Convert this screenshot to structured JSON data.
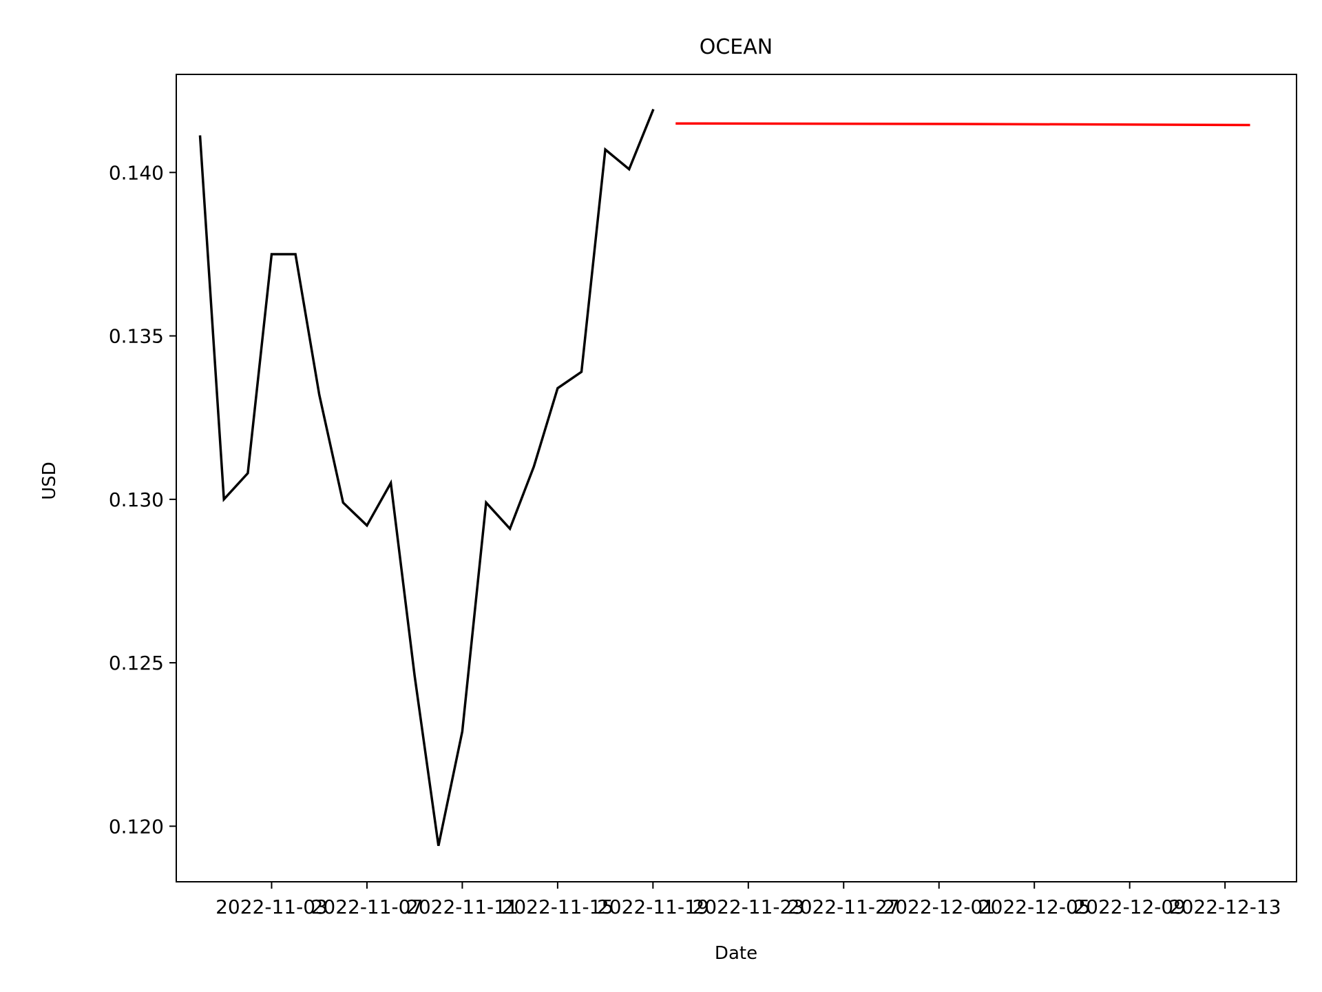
{
  "chart_data": {
    "type": "line",
    "title": "OCEAN",
    "xlabel": "Date",
    "ylabel": "USD",
    "x_ticks": [
      "2022-11-03",
      "2022-11-07",
      "2022-11-11",
      "2022-11-15",
      "2022-11-19",
      "2022-11-23",
      "2022-11-27",
      "2022-12-01",
      "2022-12-05",
      "2022-12-09",
      "2022-12-13"
    ],
    "y_ticks": [
      "0.120",
      "0.125",
      "0.130",
      "0.135",
      "0.140"
    ],
    "xlim": [
      "2022-10-30",
      "2022-12-16"
    ],
    "ylim": [
      0.1183,
      0.143
    ],
    "grid": false,
    "legend": "none",
    "series": [
      {
        "color": "#000000",
        "x": [
          "2022-10-31",
          "2022-11-01",
          "2022-11-02",
          "2022-11-03",
          "2022-11-04",
          "2022-11-05",
          "2022-11-06",
          "2022-11-07",
          "2022-11-08",
          "2022-11-09",
          "2022-11-10",
          "2022-11-11",
          "2022-11-12",
          "2022-11-13",
          "2022-11-14",
          "2022-11-15",
          "2022-11-16",
          "2022-11-17",
          "2022-11-18",
          "2022-11-19"
        ],
        "y": [
          0.1411,
          0.13,
          0.1308,
          0.1375,
          0.1375,
          0.1332,
          0.1299,
          0.1292,
          0.1305,
          0.1246,
          0.1194,
          0.1229,
          0.1299,
          0.1291,
          0.131,
          0.1334,
          0.1339,
          0.1407,
          0.1401,
          0.1419
        ]
      },
      {
        "color": "#ff0000",
        "x": [
          "2022-11-20",
          "2022-12-03",
          "2022-12-14"
        ],
        "y": [
          0.1415,
          0.14148,
          0.14145
        ]
      }
    ]
  }
}
